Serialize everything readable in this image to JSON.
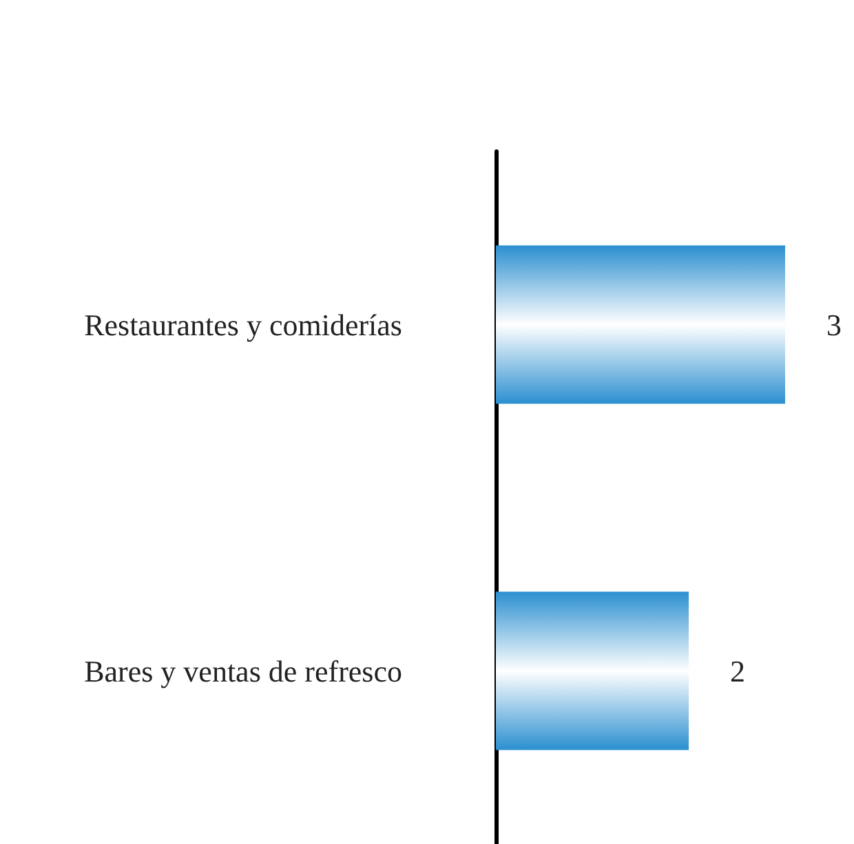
{
  "chart_data": {
    "type": "bar",
    "orientation": "horizontal",
    "categories": [
      "Restaurantes y comiderías",
      "Bares y ventas de refresco"
    ],
    "values": [
      3,
      2
    ],
    "color": "#2b8fd0",
    "data_labels": true
  }
}
